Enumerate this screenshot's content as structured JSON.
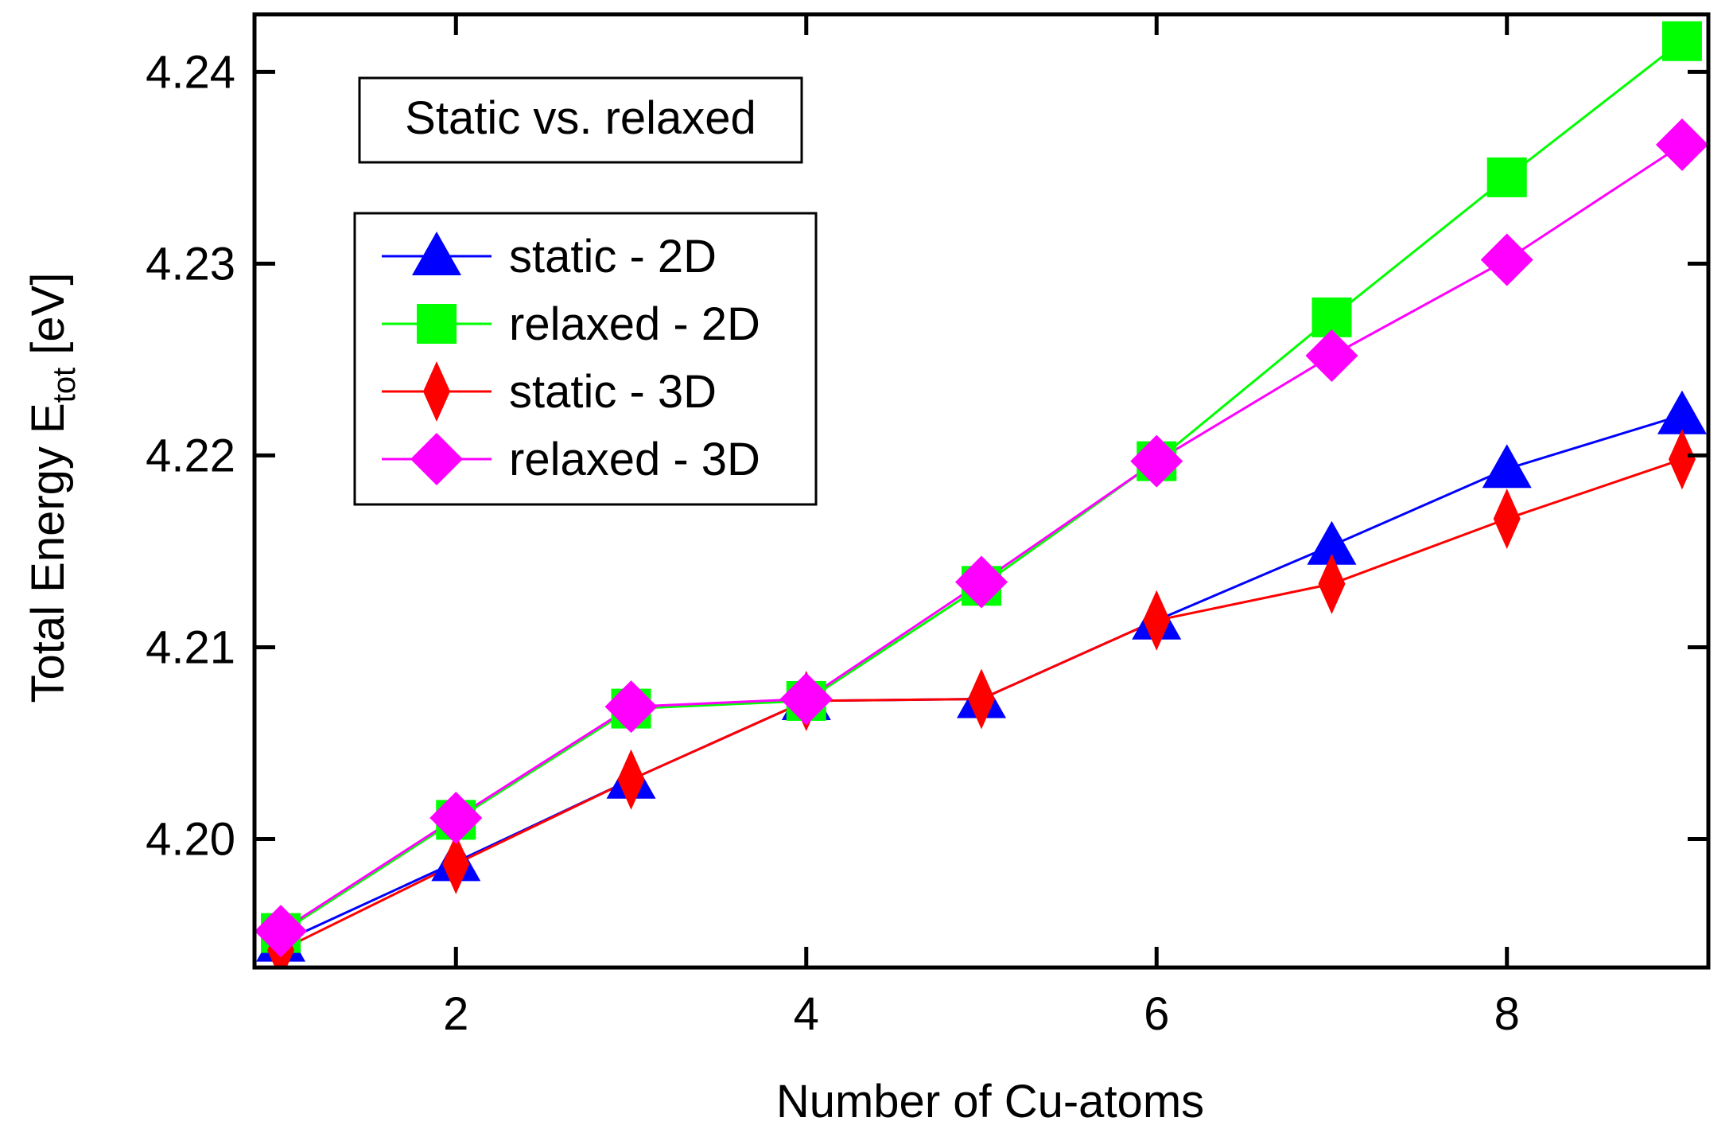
{
  "chart_data": {
    "type": "line",
    "title": "",
    "xlabel": "Number of Cu-atoms",
    "ylabel": {
      "main": "Total Energy E",
      "subscript": "tot",
      "unit": " [eV]"
    },
    "xlim": [
      0.85,
      9.15
    ],
    "ylim": [
      4.1933,
      4.243
    ],
    "xticks": [
      2,
      4,
      6,
      8
    ],
    "xtick_labels": [
      "2",
      "4",
      "6",
      "8"
    ],
    "yticks": [
      4.2,
      4.21,
      4.22,
      4.23,
      4.24
    ],
    "ytick_labels": [
      "4.20",
      "4.21",
      "4.22",
      "4.23",
      "4.24"
    ],
    "annotation": "Static vs. relaxed",
    "legend_position": "top-left",
    "grid": false,
    "series": [
      {
        "name": "static - 2D",
        "color": "#0000ff",
        "marker": "triangle",
        "x": [
          1,
          2,
          3,
          4,
          5,
          6,
          7,
          8,
          9
        ],
        "values": [
          4.1946,
          4.1988,
          4.2031,
          4.2072,
          4.2073,
          4.2114,
          4.2153,
          4.2193,
          4.2221
        ]
      },
      {
        "name": "relaxed - 2D",
        "color": "#00ff00",
        "marker": "square",
        "x": [
          1,
          2,
          3,
          4,
          5,
          6,
          7,
          8,
          9
        ],
        "values": [
          4.1951,
          4.201,
          4.2068,
          4.2072,
          4.2132,
          4.2197,
          4.2272,
          4.2345,
          4.2416
        ]
      },
      {
        "name": "static - 3D",
        "color": "#ff0000",
        "marker": "diamond-thin",
        "x": [
          1,
          2,
          3,
          4,
          5,
          6,
          7,
          8,
          9
        ],
        "values": [
          4.1942,
          4.1987,
          4.2031,
          4.2072,
          4.2073,
          4.2114,
          4.2133,
          4.2167,
          4.2198
        ]
      },
      {
        "name": "relaxed - 3D",
        "color": "#ff00ff",
        "marker": "diamond",
        "x": [
          1,
          2,
          3,
          4,
          5,
          6,
          7,
          8,
          9
        ],
        "values": [
          4.1952,
          4.2011,
          4.2069,
          4.2073,
          4.2134,
          4.2197,
          4.2252,
          4.2302,
          4.2362
        ]
      }
    ]
  }
}
